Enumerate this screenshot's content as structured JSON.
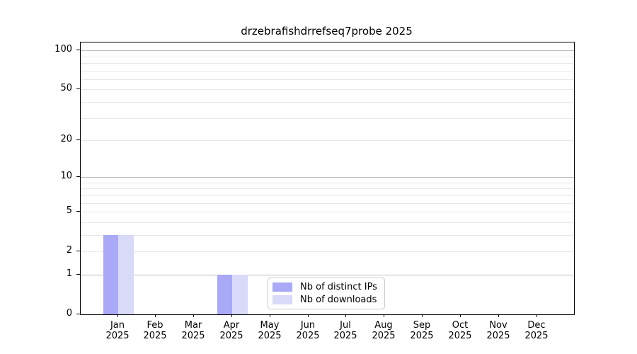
{
  "chart_data": {
    "type": "bar",
    "title": "drzebrafishdrrefseq7probe 2025",
    "categories": [
      "Jan",
      "Feb",
      "Mar",
      "Apr",
      "May",
      "Jun",
      "Jul",
      "Aug",
      "Sep",
      "Oct",
      "Nov",
      "Dec"
    ],
    "category_year": "2025",
    "series": [
      {
        "name": "Nb of distinct IPs",
        "color": "#a9a9f7",
        "values": [
          3,
          0,
          0,
          1,
          0,
          0,
          0,
          0,
          0,
          0,
          0,
          0
        ]
      },
      {
        "name": "Nb of downloads",
        "color": "#d9d9f8",
        "values": [
          3,
          0,
          0,
          1,
          0,
          0,
          0,
          0,
          0,
          0,
          0,
          0
        ]
      }
    ],
    "y_axis": {
      "scale": "log1p",
      "ticks": [
        0,
        1,
        2,
        5,
        10,
        20,
        50,
        100
      ],
      "major_gridlines": [
        1,
        10,
        100
      ],
      "minor_gridlines": [
        2,
        3,
        4,
        5,
        6,
        7,
        8,
        9,
        20,
        30,
        40,
        50,
        60,
        70,
        80,
        90
      ],
      "max": 116
    },
    "legend": {
      "position": "lower-center-inside"
    },
    "colors": {
      "background": "#ffffff",
      "spine": "#000000",
      "major_grid": "#bcbcbc",
      "minor_grid": "#e8e8e8",
      "tick_text": "#000000"
    }
  }
}
